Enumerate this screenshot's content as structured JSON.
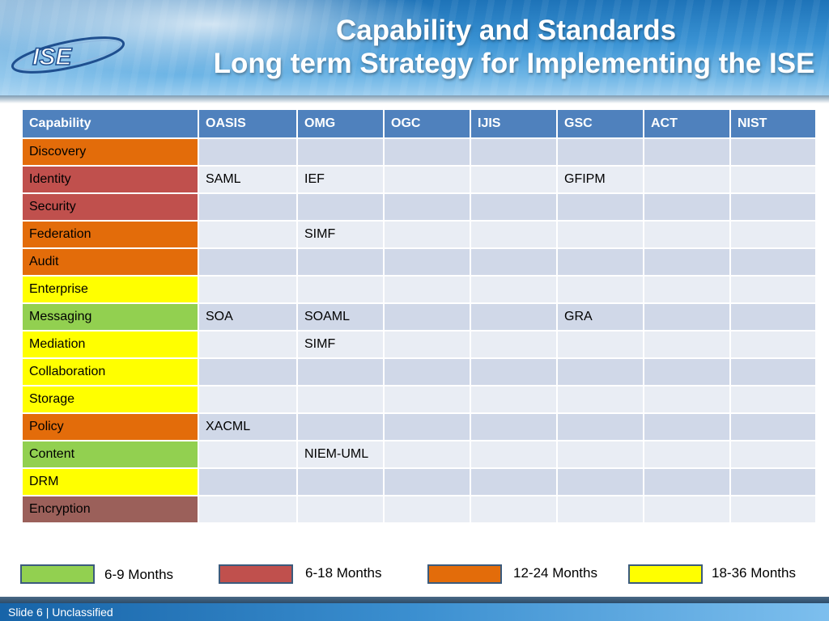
{
  "title": {
    "line1": "Capability and Standards",
    "line2": "Long term Strategy for Implementing the ISE"
  },
  "logo": {
    "text": "ISE"
  },
  "table": {
    "headers": [
      "Capability",
      "OASIS",
      "OMG",
      "OGC",
      "IJIS",
      "GSC",
      "ACT",
      "NIST"
    ],
    "rows": [
      {
        "capability": "Discovery",
        "color": "#e36c0a",
        "cells": [
          "",
          "",
          "",
          "",
          "",
          "",
          ""
        ]
      },
      {
        "capability": "Identity",
        "color": "#c0504d",
        "cells": [
          "SAML",
          "IEF",
          "",
          "",
          "GFIPM",
          "",
          ""
        ]
      },
      {
        "capability": "Security",
        "color": "#c0504d",
        "cells": [
          "",
          "",
          "",
          "",
          "",
          "",
          ""
        ]
      },
      {
        "capability": "Federation",
        "color": "#e36c0a",
        "cells": [
          "",
          "SIMF",
          "",
          "",
          "",
          "",
          ""
        ]
      },
      {
        "capability": "Audit",
        "color": "#e36c0a",
        "cells": [
          "",
          "",
          "",
          "",
          "",
          "",
          ""
        ]
      },
      {
        "capability": "Enterprise",
        "color": "#ffff00",
        "cells": [
          "",
          "",
          "",
          "",
          "",
          "",
          ""
        ]
      },
      {
        "capability": "Messaging",
        "color": "#92d050",
        "cells": [
          "SOA",
          "SOAML",
          "",
          "",
          "GRA",
          "",
          ""
        ]
      },
      {
        "capability": "Mediation",
        "color": "#ffff00",
        "cells": [
          "",
          "SIMF",
          "",
          "",
          "",
          "",
          ""
        ]
      },
      {
        "capability": "Collaboration",
        "color": "#ffff00",
        "cells": [
          "",
          "",
          "",
          "",
          "",
          "",
          ""
        ]
      },
      {
        "capability": "Storage",
        "color": "#ffff00",
        "cells": [
          "",
          "",
          "",
          "",
          "",
          "",
          ""
        ]
      },
      {
        "capability": "Policy",
        "color": "#e36c0a",
        "cells": [
          "XACML",
          "",
          "",
          "",
          "",
          "",
          ""
        ]
      },
      {
        "capability": "Content",
        "color": "#92d050",
        "cells": [
          "",
          "NIEM-UML",
          "",
          "",
          "",
          "",
          ""
        ]
      },
      {
        "capability": "DRM",
        "color": "#ffff00",
        "cells": [
          "",
          "",
          "",
          "",
          "",
          "",
          ""
        ]
      },
      {
        "capability": "Encryption",
        "color": "#9b605a",
        "cells": [
          "",
          "",
          "",
          "",
          "",
          "",
          ""
        ]
      }
    ]
  },
  "legend": [
    {
      "label": "6-9 Months",
      "color": "#92d050"
    },
    {
      "label": "6-18 Months",
      "color": "#c0504d"
    },
    {
      "label": "12-24 Months",
      "color": "#e36c0a"
    },
    {
      "label": "18-36 Months",
      "color": "#ffff00"
    }
  ],
  "footer": {
    "text": "Slide 6 | Unclassified"
  },
  "colors": {
    "header_blue": "#1e73b8",
    "table_header": "#4f81bd",
    "row_odd": "#d0d8e8",
    "row_even": "#e9edf4"
  }
}
